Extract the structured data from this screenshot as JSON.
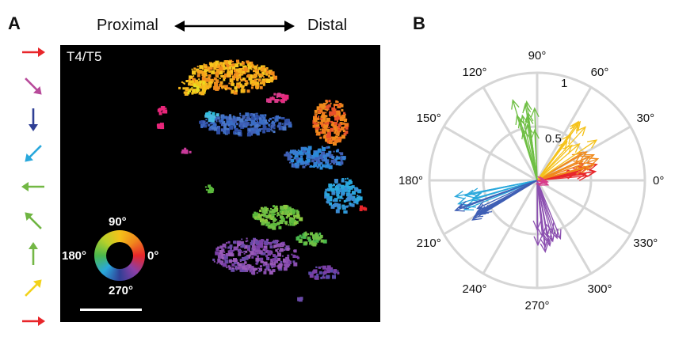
{
  "panel_a": {
    "letter": "A",
    "proximal_label": "Proximal",
    "distal_label": "Distal",
    "image_title": "T4/T5",
    "direction_arrows": [
      {
        "angle_deg": 0,
        "color": "#e8262a",
        "icon": "arrow-right-icon"
      },
      {
        "angle_deg": -45,
        "color": "#b84a9a",
        "icon": "arrow-down-right-icon"
      },
      {
        "angle_deg": -90,
        "color": "#2f3f95",
        "icon": "arrow-down-icon"
      },
      {
        "angle_deg": -135,
        "color": "#29a8dc",
        "icon": "arrow-down-left-icon"
      },
      {
        "angle_deg": 180,
        "color": "#72b844",
        "icon": "arrow-left-icon"
      },
      {
        "angle_deg": 135,
        "color": "#6fb542",
        "icon": "arrow-up-left-icon"
      },
      {
        "angle_deg": 90,
        "color": "#74b746",
        "icon": "arrow-up-icon"
      },
      {
        "angle_deg": 45,
        "color": "#f2d21a",
        "icon": "arrow-up-right-icon"
      },
      {
        "angle_deg": 0,
        "color": "#e8262a",
        "icon": "arrow-right-icon"
      }
    ],
    "color_wheel": {
      "label_top": "90°",
      "label_left": "180°",
      "label_right": "0°",
      "label_bottom": "270°"
    }
  },
  "panel_b": {
    "letter": "B",
    "radial_labels": [
      "0.5",
      "1"
    ],
    "angle_labels": [
      {
        "deg": 0,
        "text": "0°"
      },
      {
        "deg": 30,
        "text": "30°"
      },
      {
        "deg": 60,
        "text": "60°"
      },
      {
        "deg": 90,
        "text": "90°"
      },
      {
        "deg": 120,
        "text": "120°"
      },
      {
        "deg": 150,
        "text": "150°"
      },
      {
        "deg": 180,
        "text": "180°"
      },
      {
        "deg": 210,
        "text": "210°"
      },
      {
        "deg": 240,
        "text": "240°"
      },
      {
        "deg": 270,
        "text": "270°"
      },
      {
        "deg": 300,
        "text": "300°"
      },
      {
        "deg": 330,
        "text": "330°"
      }
    ],
    "vector_groups": [
      {
        "color": "#e8262a",
        "angle_range": [
          5,
          22
        ],
        "magnitude_range": [
          0.35,
          0.62
        ],
        "count": 10
      },
      {
        "color": "#f08a1c",
        "angle_range": [
          14,
          32
        ],
        "magnitude_range": [
          0.4,
          0.65
        ],
        "count": 9
      },
      {
        "color": "#f5c21a",
        "angle_range": [
          30,
          55
        ],
        "magnitude_range": [
          0.45,
          0.72
        ],
        "count": 9
      },
      {
        "color": "#6fbf44",
        "angle_range": [
          92,
          108
        ],
        "magnitude_range": [
          0.45,
          0.78
        ],
        "count": 12
      },
      {
        "color": "#29a8dc",
        "angle_range": [
          190,
          202
        ],
        "magnitude_range": [
          0.55,
          0.78
        ],
        "count": 9
      },
      {
        "color": "#3f5fb5",
        "angle_range": [
          198,
          212
        ],
        "magnitude_range": [
          0.55,
          0.82
        ],
        "count": 10
      },
      {
        "color": "#8b4fb0",
        "angle_range": [
          270,
          292
        ],
        "magnitude_range": [
          0.45,
          0.72
        ],
        "count": 12
      },
      {
        "color": "#d83a8a",
        "angle_range": [
          335,
          355
        ],
        "magnitude_range": [
          0.06,
          0.14
        ],
        "count": 3
      }
    ]
  }
}
